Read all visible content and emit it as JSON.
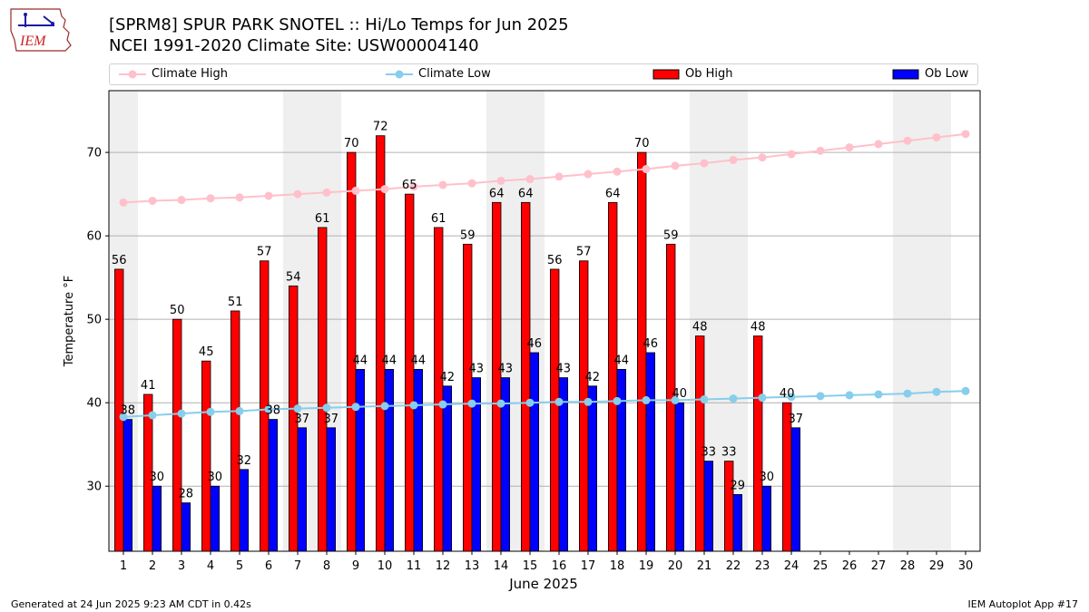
{
  "logo": {
    "text": "IEM"
  },
  "chart_data": {
    "type": "bar",
    "title": "[SPRM8] SPUR PARK SNOTEL :: Hi/Lo Temps for Jun 2025",
    "subtitle": "NCEI 1991-2020 Climate Site: USW00004140",
    "xlabel": "June 2025",
    "ylabel": "Temperature °F",
    "ylim": [
      22.2,
      77.4
    ],
    "yticks": [
      30,
      40,
      50,
      60,
      70
    ],
    "grid": true,
    "legend_position": "top",
    "categories": [
      "1",
      "2",
      "3",
      "4",
      "5",
      "6",
      "7",
      "8",
      "9",
      "10",
      "11",
      "12",
      "13",
      "14",
      "15",
      "16",
      "17",
      "18",
      "19",
      "20",
      "21",
      "22",
      "23",
      "24",
      "25",
      "26",
      "27",
      "28",
      "29",
      "30"
    ],
    "weekend_days": [
      1,
      7,
      8,
      14,
      15,
      21,
      22,
      28,
      29
    ],
    "series": [
      {
        "name": "Climate High",
        "type": "line",
        "color": "#ffc0cb",
        "values": [
          64.0,
          64.2,
          64.3,
          64.5,
          64.6,
          64.8,
          65.0,
          65.2,
          65.4,
          65.6,
          65.9,
          66.1,
          66.3,
          66.6,
          66.8,
          67.1,
          67.4,
          67.7,
          68.0,
          68.4,
          68.7,
          69.1,
          69.4,
          69.8,
          70.2,
          70.6,
          71.0,
          71.4,
          71.8,
          72.2
        ]
      },
      {
        "name": "Climate Low",
        "type": "line",
        "color": "#87ceeb",
        "values": [
          38.3,
          38.5,
          38.7,
          38.9,
          39.0,
          39.2,
          39.3,
          39.4,
          39.5,
          39.6,
          39.7,
          39.8,
          39.9,
          39.9,
          40.0,
          40.1,
          40.1,
          40.2,
          40.3,
          40.3,
          40.4,
          40.5,
          40.6,
          40.7,
          40.8,
          40.9,
          41.0,
          41.1,
          41.3,
          41.4
        ]
      },
      {
        "name": "Ob High",
        "type": "bar",
        "color": "#ff0000",
        "values": [
          56,
          41,
          50,
          45,
          51,
          57,
          54,
          61,
          70,
          72,
          65,
          61,
          59,
          64,
          64,
          56,
          57,
          64,
          70,
          59,
          48,
          33,
          48,
          40,
          null,
          null,
          null,
          null,
          null,
          null
        ]
      },
      {
        "name": "Ob Low",
        "type": "bar",
        "color": "#0000ff",
        "values": [
          38,
          30,
          28,
          30,
          32,
          38,
          37,
          37,
          44,
          44,
          44,
          42,
          43,
          43,
          46,
          43,
          42,
          44,
          46,
          40,
          33,
          29,
          30,
          37,
          null,
          null,
          null,
          null,
          null,
          null
        ]
      }
    ]
  },
  "footer": {
    "generated": "Generated at 24 Jun 2025 9:23 AM CDT in 0.42s",
    "app": "IEM Autoplot App #17"
  }
}
